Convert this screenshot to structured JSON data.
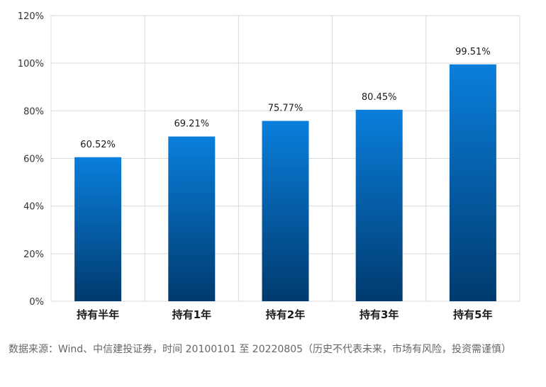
{
  "chart_data": {
    "type": "bar",
    "categories": [
      "持有半年",
      "持有1年",
      "持有2年",
      "持有3年",
      "持有5年"
    ],
    "values": [
      60.52,
      69.21,
      75.77,
      80.45,
      99.51
    ],
    "data_labels": [
      "60.52%",
      "69.21%",
      "75.77%",
      "80.45%",
      "99.51%"
    ],
    "y_ticks": [
      "0%",
      "20%",
      "40%",
      "60%",
      "80%",
      "100%",
      "120%"
    ],
    "ylim": [
      0,
      120
    ],
    "grid": true,
    "legend": "none",
    "title": "",
    "xlabel": "",
    "ylabel": "",
    "bar_color_top": "#0a7fdc",
    "bar_color_bottom": "#003a6e",
    "grid_color": "#d9d9d9"
  },
  "footer": {
    "source_note": "数据来源：Wind、中信建投证券，时间 20100101 至 20220805（历史不代表未来，市场有风险，投资需谨慎）"
  }
}
